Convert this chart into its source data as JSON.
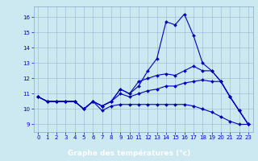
{
  "x": [
    0,
    1,
    2,
    3,
    4,
    5,
    6,
    7,
    8,
    9,
    10,
    11,
    12,
    13,
    14,
    15,
    16,
    17,
    18,
    19,
    20,
    21,
    22,
    23
  ],
  "line1": [
    10.8,
    10.5,
    10.5,
    10.5,
    10.5,
    10.0,
    10.5,
    10.2,
    10.5,
    11.3,
    11.0,
    11.5,
    12.5,
    13.3,
    15.7,
    15.5,
    16.2,
    14.8,
    13.0,
    12.5,
    11.8,
    10.8,
    9.9,
    9.0
  ],
  "line2": [
    10.8,
    10.5,
    10.5,
    10.5,
    10.5,
    10.0,
    10.5,
    10.2,
    10.5,
    11.3,
    11.0,
    11.8,
    12.0,
    12.2,
    12.3,
    12.2,
    12.5,
    12.8,
    12.5,
    12.5,
    11.8,
    10.8,
    9.9,
    9.0
  ],
  "line3": [
    10.8,
    10.5,
    10.5,
    10.5,
    10.5,
    10.0,
    10.5,
    10.2,
    10.5,
    11.0,
    10.8,
    11.0,
    11.2,
    11.3,
    11.5,
    11.5,
    11.7,
    11.8,
    11.9,
    11.8,
    11.8,
    10.8,
    9.9,
    9.0
  ],
  "line4": [
    10.8,
    10.5,
    10.5,
    10.5,
    10.5,
    10.0,
    10.5,
    9.9,
    10.2,
    10.3,
    10.3,
    10.3,
    10.3,
    10.3,
    10.3,
    10.3,
    10.3,
    10.2,
    10.0,
    9.8,
    9.5,
    9.2,
    9.0,
    9.0
  ],
  "line_color": "#0000bb",
  "markersize": 2.0,
  "bg_color": "#cce8f0",
  "grid_color": "#88aacc",
  "xlabel": "Graphe des températures (°c)",
  "xlabel_bg": "#0044aa",
  "ylim": [
    8.5,
    16.7
  ],
  "xlim": [
    -0.5,
    23.5
  ],
  "yticks": [
    9,
    10,
    11,
    12,
    13,
    14,
    15,
    16
  ],
  "xticks": [
    0,
    1,
    2,
    3,
    4,
    5,
    6,
    7,
    8,
    9,
    10,
    11,
    12,
    13,
    14,
    15,
    16,
    17,
    18,
    19,
    20,
    21,
    22,
    23
  ],
  "tick_color": "#0000bb",
  "tick_fontsize": 5.0,
  "xlabel_fontsize": 6.5
}
